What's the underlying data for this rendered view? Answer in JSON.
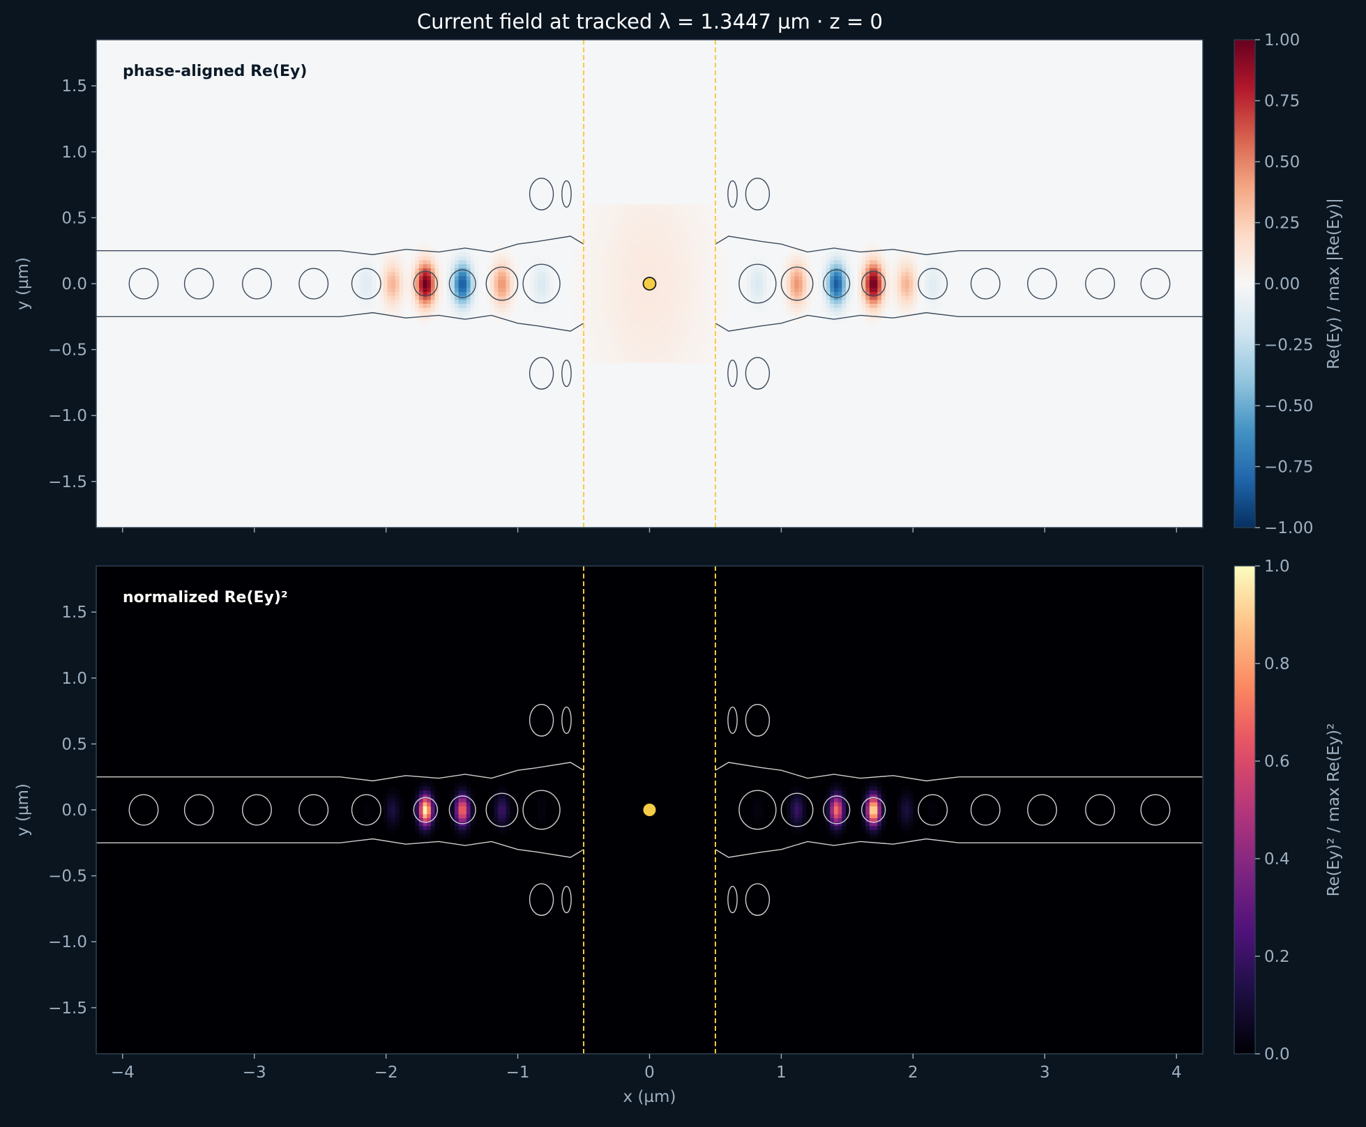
{
  "title": "Current field at tracked λ = 1.3447 µm · z = 0",
  "colors": {
    "background": "#0a1520",
    "axis": "#9fb0c0",
    "cavity_marker": "#f5cc47",
    "top_panel_bg": "#f5f6f7",
    "bottom_panel_bg": "#000004"
  },
  "chart_data": [
    {
      "type": "heatmap",
      "panel_label": "phase-aligned Re(Ey)",
      "ylabel": "y (µm)",
      "colorbar_label": "Re(Ey) / max |Re(Ey)|",
      "colormap": "RdBu_r",
      "xlim": [
        -4.2,
        4.2
      ],
      "ylim": [
        -1.85,
        1.85
      ],
      "x_ticks": [
        -4,
        -3,
        -2,
        -1,
        0,
        1,
        2,
        3,
        4
      ],
      "y_ticks": [
        -1.5,
        -1.0,
        -0.5,
        0.0,
        0.5,
        1.0,
        1.5
      ],
      "y_tick_labels": [
        "−1.5",
        "−1.0",
        "−0.5",
        "0.0",
        "0.5",
        "1.0",
        "1.5"
      ],
      "colorbar_range": [
        -1,
        1
      ],
      "colorbar_ticks": [
        -1.0,
        -0.75,
        -0.5,
        -0.25,
        0.0,
        0.25,
        0.5,
        0.75,
        1.0
      ],
      "colorbar_tick_labels": [
        "−1.00",
        "−0.75",
        "−0.50",
        "−0.25",
        "0.00",
        "0.25",
        "0.50",
        "0.75",
        "1.00"
      ],
      "cavity_bounds_x": [
        -0.5,
        0.5
      ],
      "source_point": [
        0,
        0
      ],
      "field_lobes_x": [
        -2.15,
        -1.95,
        -1.7,
        -1.42,
        -1.12,
        -0.82,
        0.82,
        1.12,
        1.42,
        1.7,
        1.95,
        2.15
      ],
      "field_lobes_amplitude": [
        -0.12,
        0.35,
        1.0,
        -0.85,
        0.45,
        -0.15,
        -0.15,
        0.45,
        -0.85,
        1.0,
        0.35,
        -0.12
      ]
    },
    {
      "type": "heatmap",
      "panel_label": "normalized Re(Ey)²",
      "xlabel": "x (µm)",
      "ylabel": "y (µm)",
      "colorbar_label": "Re(Ey)² / max Re(Ey)²",
      "colormap": "magma",
      "xlim": [
        -4.2,
        4.2
      ],
      "ylim": [
        -1.85,
        1.85
      ],
      "x_ticks": [
        -4,
        -3,
        -2,
        -1,
        0,
        1,
        2,
        3,
        4
      ],
      "x_tick_labels": [
        "−4",
        "−3",
        "−2",
        "−1",
        "0",
        "1",
        "2",
        "3",
        "4"
      ],
      "y_ticks": [
        -1.5,
        -1.0,
        -0.5,
        0.0,
        0.5,
        1.0,
        1.5
      ],
      "y_tick_labels": [
        "−1.5",
        "−1.0",
        "−0.5",
        "0.0",
        "0.5",
        "1.0",
        "1.5"
      ],
      "colorbar_range": [
        0,
        1
      ],
      "colorbar_ticks": [
        0.0,
        0.2,
        0.4,
        0.6,
        0.8,
        1.0
      ],
      "colorbar_tick_labels": [
        "0.0",
        "0.2",
        "0.4",
        "0.6",
        "0.8",
        "1.0"
      ],
      "cavity_bounds_x": [
        -0.5,
        0.5
      ],
      "source_point": [
        0,
        0
      ]
    }
  ]
}
